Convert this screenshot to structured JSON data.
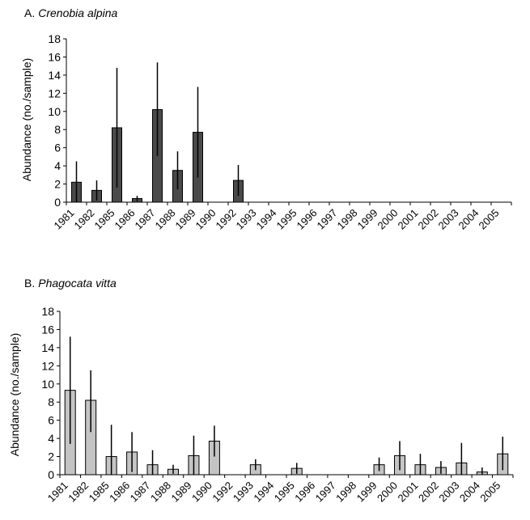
{
  "chart_data": [
    {
      "type": "bar",
      "panel_label": "A.",
      "title": "Crenobia alpina",
      "ylabel": "Abundance (no./sample)",
      "xlabel": "",
      "ylim": [
        0,
        18
      ],
      "yticks": [
        0,
        2,
        4,
        6,
        8,
        10,
        12,
        14,
        16,
        18
      ],
      "grid": false,
      "bar_color": "#4a4a4a",
      "categories": [
        "1981",
        "1982",
        "1985",
        "1986",
        "1987",
        "1988",
        "1989",
        "1990",
        "1992",
        "1993",
        "1994",
        "1995",
        "1996",
        "1997",
        "1998",
        "1999",
        "2000",
        "2001",
        "2002",
        "2003",
        "2004",
        "2005"
      ],
      "values": [
        2.2,
        1.3,
        8.2,
        0.4,
        10.2,
        3.5,
        7.7,
        0,
        2.4,
        0,
        0,
        0,
        0,
        0,
        0,
        0,
        0,
        0,
        0,
        0,
        0,
        0
      ],
      "error_high": [
        4.5,
        2.4,
        14.8,
        0.7,
        15.4,
        5.6,
        12.7,
        null,
        4.1,
        null,
        null,
        null,
        null,
        null,
        null,
        null,
        null,
        null,
        null,
        null,
        null,
        null
      ],
      "error_low": [
        0,
        0.2,
        1.6,
        0.1,
        5.1,
        1.4,
        2.7,
        null,
        0.7,
        null,
        null,
        null,
        null,
        null,
        null,
        null,
        null,
        null,
        null,
        null,
        null,
        null
      ]
    },
    {
      "type": "bar",
      "panel_label": "B.",
      "title": "Phagocata vitta",
      "ylabel": "Abundance (no./sample)",
      "xlabel": "",
      "ylim": [
        0,
        18
      ],
      "yticks": [
        0,
        2,
        4,
        6,
        8,
        10,
        12,
        14,
        16,
        18
      ],
      "grid": false,
      "bar_color": "#c4c4c4",
      "categories": [
        "1981",
        "1982",
        "1985",
        "1986",
        "1987",
        "1988",
        "1989",
        "1990",
        "1992",
        "1993",
        "1994",
        "1995",
        "1996",
        "1997",
        "1998",
        "1999",
        "2000",
        "2001",
        "2002",
        "2003",
        "2004",
        "2005"
      ],
      "values": [
        9.3,
        8.2,
        2.0,
        2.5,
        1.1,
        0.6,
        2.1,
        3.7,
        0,
        1.1,
        0,
        0.7,
        0,
        0,
        0,
        1.1,
        2.1,
        1.1,
        0.8,
        1.3,
        0.3,
        2.3
      ],
      "error_high": [
        15.2,
        11.5,
        5.5,
        4.7,
        2.7,
        1.1,
        4.3,
        5.4,
        null,
        1.7,
        null,
        1.3,
        null,
        null,
        null,
        1.9,
        3.7,
        2.3,
        1.5,
        3.5,
        0.8,
        4.2
      ],
      "error_low": [
        3.4,
        4.7,
        0,
        0.3,
        0,
        0.1,
        0,
        2.0,
        null,
        0.5,
        null,
        0.1,
        null,
        null,
        null,
        0.4,
        0.5,
        0,
        0.1,
        0,
        0,
        0.5
      ]
    }
  ]
}
